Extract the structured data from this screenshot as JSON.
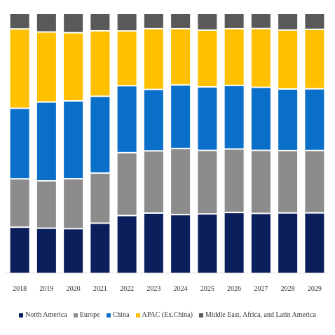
{
  "chart_data": {
    "type": "bar",
    "stacked": true,
    "normalized": true,
    "categories": [
      "2018",
      "2019",
      "2020",
      "2021",
      "2022",
      "2023",
      "2024",
      "2025",
      "2026",
      "2027",
      "2028",
      "2029"
    ],
    "series": [
      {
        "name": "North America",
        "color": "#0b1f5c",
        "values": [
          18.3,
          17.5,
          17.3,
          19.4,
          22.2,
          24.5,
          23.8,
          24.1,
          24.7,
          24.5,
          24.7,
          24.7
        ]
      },
      {
        "name": "Europe",
        "color": "#8c8c8c",
        "values": [
          19.2,
          18.4,
          19.4,
          19.4,
          24.2,
          25.3,
          26.9,
          25.8,
          25.8,
          25.8,
          25.5,
          25.5
        ]
      },
      {
        "name": "China",
        "color": "#0a6fc8",
        "values": [
          28.3,
          31.0,
          30.6,
          30.0,
          25.8,
          25.0,
          25.8,
          25.8,
          25.8,
          25.8,
          25.2,
          25.2
        ]
      },
      {
        "name": "APAC (Ex.China)",
        "color": "#ffc000",
        "values": [
          31.9,
          27.5,
          26.7,
          25.5,
          21.0,
          24.7,
          22.8,
          23.0,
          23.0,
          24.0,
          24.1,
          24.3
        ]
      },
      {
        "name": "Middle East, Africa, and Latin America",
        "color": "#595959",
        "values": [
          5.8,
          6.9,
          7.2,
          6.4,
          6.4,
          5.8,
          5.8,
          6.4,
          5.8,
          5.8,
          6.4,
          6.1
        ]
      }
    ],
    "ylim": [
      0,
      100
    ],
    "grid": false,
    "legend_position": "bottom"
  }
}
